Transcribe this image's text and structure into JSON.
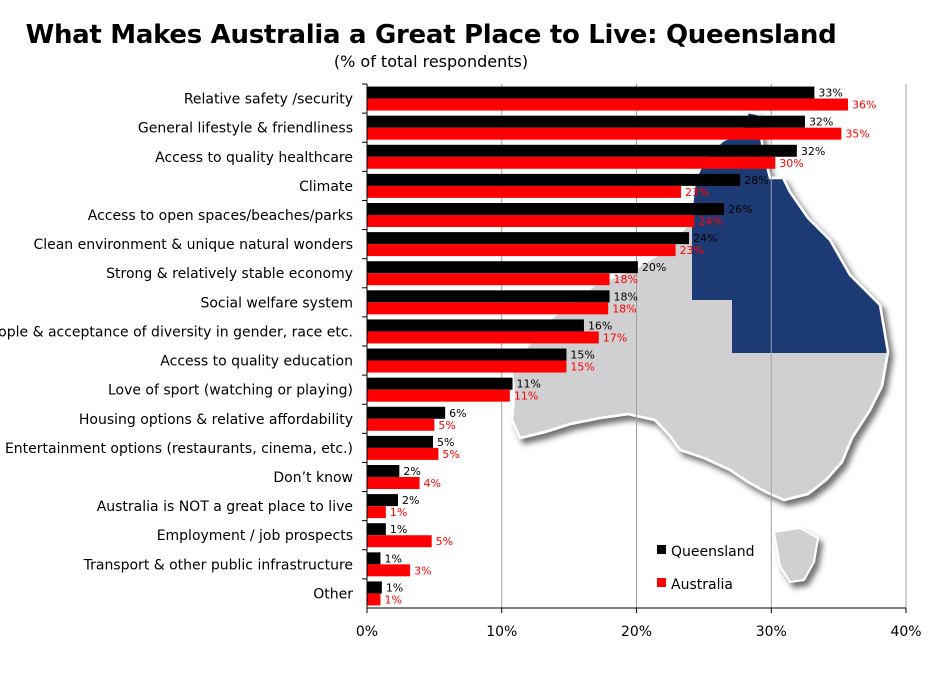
{
  "chart_data": {
    "type": "bar",
    "orientation": "horizontal",
    "title": "What Makes Australia a Great Place to Live: Queensland",
    "subtitle": "(% of total respondents)",
    "categories": [
      "Relative safety /security",
      "General lifestyle & friendliness",
      "Access to quality healthcare",
      "Climate",
      "Access to open spaces/beaches/parks",
      "Clean environment & unique natural wonders",
      "Strong & relatively stable economy",
      "Social welfare system",
      "People & acceptance of diversity in gender, race etc.",
      "Access to quality education",
      "Love of sport (watching or playing)",
      "Housing options & relative affordability",
      "Entertainment options (restaurants, cinema, etc.)",
      "Don’t know",
      "Australia is NOT a great place to live",
      "Employment / job prospects",
      "Transport & other public infrastructure",
      "Other"
    ],
    "series": [
      {
        "name": "Queensland",
        "color": "#000000",
        "values": [
          33.2,
          32.5,
          31.9,
          27.7,
          26.5,
          23.9,
          20.1,
          18.0,
          16.1,
          14.8,
          10.8,
          5.8,
          4.9,
          2.4,
          2.3,
          1.4,
          1.0,
          1.1
        ],
        "labels": [
          "33%",
          "32%",
          "32%",
          "28%",
          "26%",
          "24%",
          "20%",
          "18%",
          "16%",
          "15%",
          "11%",
          "6%",
          "5%",
          "2%",
          "2%",
          "1%",
          "1%",
          "1%"
        ]
      },
      {
        "name": "Australia",
        "color": "#ff0000",
        "values": [
          35.7,
          35.2,
          30.3,
          23.3,
          24.3,
          22.9,
          18.0,
          17.9,
          17.2,
          14.8,
          10.6,
          5.0,
          5.3,
          3.9,
          1.4,
          4.8,
          3.2,
          1.0
        ],
        "labels": [
          "36%",
          "35%",
          "30%",
          "23%",
          "24%",
          "23%",
          "18%",
          "18%",
          "17%",
          "15%",
          "11%",
          "5%",
          "5%",
          "4%",
          "1%",
          "5%",
          "3%",
          "1%"
        ]
      }
    ],
    "xlim": [
      0,
      40
    ],
    "x_ticks": [
      "0%",
      "10%",
      "20%",
      "30%",
      "40%"
    ],
    "grid": "vertical",
    "legend_position": "bottom-right",
    "background_image": "australia-map-with-queensland-highlighted",
    "map_colors": {
      "mainland": "#d0d0d2",
      "highlight": "#1f3a75",
      "outline": "#ffffff"
    }
  }
}
